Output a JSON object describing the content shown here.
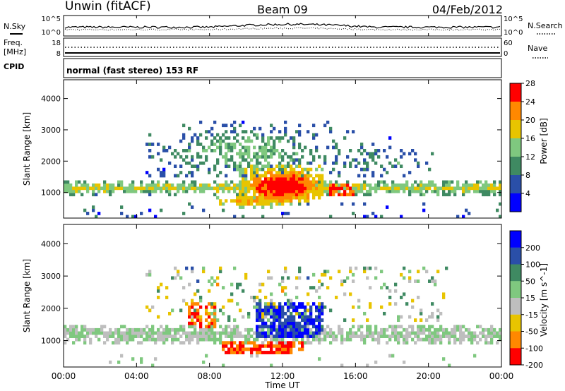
{
  "header": {
    "station": "Unwin (fitACF)",
    "beam": "Beam 09",
    "date": "04/Feb/2012"
  },
  "summary": {
    "nsky_label": "N.Sky",
    "nsearch_label": "N.Search",
    "freq_label_1": "Freq.",
    "freq_label_2": "[MHz]",
    "nave_label": "Nave",
    "cpid_label": "CPID",
    "cpid_text": "normal (fast stereo) 153 RF",
    "noise_ticks_left": [
      "10^5",
      "10^0"
    ],
    "noise_ticks_right": [
      "10^5",
      "10^0"
    ],
    "freq_ticks": [
      "18",
      "8"
    ],
    "nave_ticks": [
      "60",
      "0"
    ]
  },
  "chart_data": [
    {
      "type": "heatmap",
      "panel": "power",
      "x_unit": "hours UT",
      "xlim": [
        0,
        24
      ],
      "ylabel": "Slant Range [km]",
      "ylim": [
        180,
        4600
      ],
      "yticks": [
        "1000",
        "2000",
        "3000",
        "4000"
      ],
      "colorbar": {
        "label": "Power [dB]",
        "ticks": [
          "4",
          "8",
          "12",
          "16",
          "20",
          "24",
          "28"
        ],
        "range": [
          0,
          30
        ],
        "colors": [
          "#0000ff",
          "#2a4fa8",
          "#3f8a62",
          "#7fc87f",
          "#e8c400",
          "#ff8800",
          "#ff0000"
        ]
      },
      "features": [
        {
          "label": "F-region band",
          "x_range": [
            0,
            24
          ],
          "range_km": [
            900,
            1300
          ],
          "level": "high"
        },
        {
          "label": "Strong echoes",
          "x_range": [
            9.5,
            14.2
          ],
          "range_km": [
            700,
            1900
          ],
          "level": "very high"
        },
        {
          "label": "Scattered far-range",
          "x_range": [
            4.5,
            21
          ],
          "range_km": [
            1700,
            3300
          ],
          "level": "low"
        }
      ]
    },
    {
      "type": "heatmap",
      "panel": "velocity",
      "x_unit": "hours UT",
      "xlim": [
        0,
        24
      ],
      "xlabel": "Time UT",
      "xticks": [
        "00:00",
        "04:00",
        "08:00",
        "12:00",
        "16:00",
        "20:00",
        "00:00"
      ],
      "ylabel": "Slant Range [km]",
      "ylim": [
        180,
        4600
      ],
      "yticks": [
        "1000",
        "2000",
        "3000",
        "4000"
      ],
      "colorbar": {
        "label": "Velocity [m s^-1]",
        "ticks": [
          "200",
          "100",
          "50",
          "15",
          "-15",
          "-50",
          "-100",
          "-200"
        ],
        "range": [
          -250,
          250
        ],
        "colors": [
          "#0000ff",
          "#2a4fa8",
          "#3f8a62",
          "#7fc87f",
          "#bebebe",
          "#e8c400",
          "#ff8800",
          "#ff0000"
        ]
      },
      "features": [
        {
          "label": "Ground scatter band",
          "x_range": [
            0,
            24
          ],
          "range_km": [
            900,
            1500
          ],
          "velocity": "~0"
        },
        {
          "label": "Positive velocity cell",
          "x_range": [
            10.5,
            14.2
          ],
          "range_km": [
            1100,
            2200
          ],
          "velocity": "200+"
        },
        {
          "label": "Negative velocity arc",
          "x_range": [
            6.8,
            8.3
          ],
          "range_km": [
            1400,
            2200
          ],
          "velocity": "-200"
        },
        {
          "label": "Negative near-range",
          "x_range": [
            8.6,
            13.2
          ],
          "range_km": [
            550,
            950
          ],
          "velocity": "-200"
        }
      ]
    }
  ]
}
